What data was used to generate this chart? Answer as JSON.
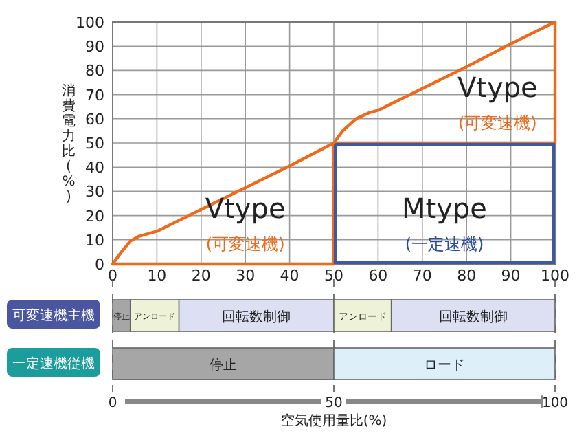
{
  "chart_data": [
    {
      "type": "line",
      "ylabel": "消費電力比(%)",
      "xlim": [
        0,
        100
      ],
      "ylim": [
        0,
        100
      ],
      "xticks": [
        0,
        10,
        20,
        30,
        40,
        50,
        60,
        70,
        80,
        90,
        100
      ],
      "yticks": [
        0,
        10,
        20,
        30,
        40,
        50,
        60,
        70,
        80,
        90,
        100
      ],
      "grid": true,
      "legend": false,
      "series": [
        {
          "color": "#ee6a1a",
          "x": [
            0,
            2,
            4,
            6,
            8,
            10,
            20,
            30,
            40,
            50,
            52,
            55,
            58,
            60,
            70,
            80,
            90,
            100
          ],
          "values": [
            0,
            5,
            9.5,
            11.5,
            12.5,
            13.5,
            22.5,
            31.5,
            40.5,
            50,
            55,
            60,
            62.5,
            63.5,
            72.5,
            81.5,
            91,
            100
          ]
        }
      ],
      "annotations": [
        "Vtype",
        "(可変速機)",
        "Mtype",
        "(一定速機)",
        "Vtype",
        "(可変速機)"
      ]
    },
    {
      "type": "bar",
      "orientation": "horizontal",
      "stacked": true,
      "legend": false,
      "categories": [
        "可変速機主機",
        "一定速機従機"
      ],
      "xlabel": "空気使用量比(%)",
      "xlim": [
        0,
        100
      ],
      "xticks": [
        0,
        50,
        100
      ],
      "series": [
        {
          "name": "停止",
          "color": "#a6a6a6",
          "values": [
            4,
            50
          ]
        },
        {
          "name": "アンロード",
          "color": "#eef3d8",
          "values": [
            11,
            null
          ]
        },
        {
          "name": "回転数制御",
          "color": "#dde0f2",
          "values": [
            35,
            null
          ]
        },
        {
          "name": "アンロード",
          "color": "#eef3d8",
          "values": [
            13,
            null
          ]
        },
        {
          "name": "回転数制御",
          "color": "#dde0f2",
          "values": [
            37,
            null
          ]
        },
        {
          "name": "ロード",
          "color": "#ddf0fa",
          "values": [
            null,
            50
          ]
        }
      ]
    }
  ]
}
